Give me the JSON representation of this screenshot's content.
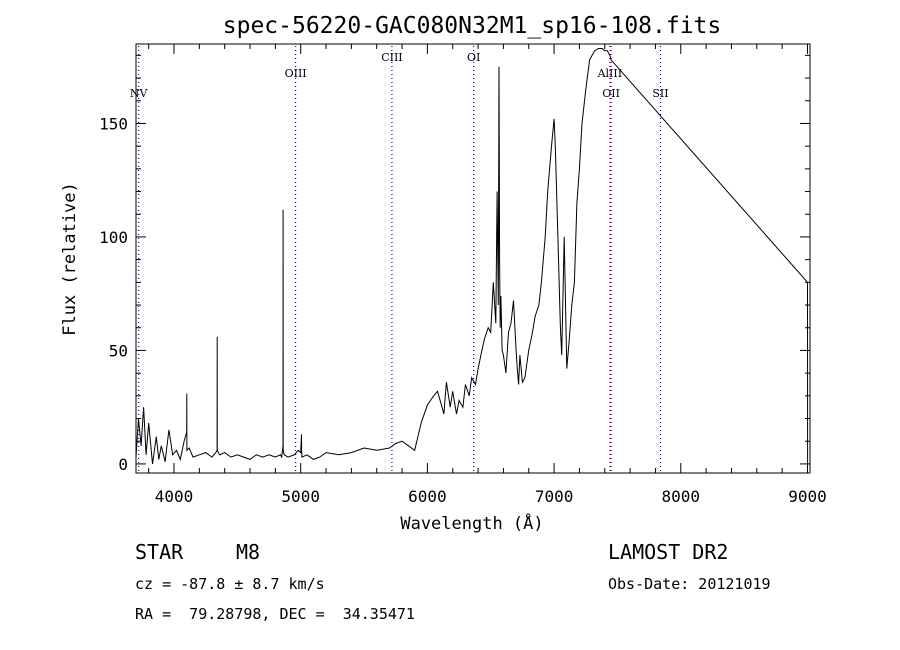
{
  "chart_data": {
    "type": "line",
    "title": "spec-56220-GAC080N32M1_sp16-108.fits",
    "xlabel": "Wavelength (Å)",
    "ylabel": "Flux (relative)",
    "xlim": [
      3700,
      9020
    ],
    "ylim": [
      -4,
      185
    ],
    "x_ticks": [
      "4000",
      "5000",
      "6000",
      "7000",
      "8000",
      "9000"
    ],
    "y_ticks": [
      "0",
      "50",
      "100",
      "150"
    ],
    "grid": false,
    "series": [
      {
        "x": [
          3700,
          3720,
          3740,
          3760,
          3780,
          3800,
          3830,
          3860,
          3880,
          3900,
          3930,
          3960,
          3990,
          4020,
          4050,
          4080,
          4100,
          4101,
          4102,
          4120,
          4150,
          4200,
          4250,
          4300,
          4330,
          4340,
          4341,
          4342,
          4360,
          4400,
          4450,
          4500,
          4550,
          4600,
          4650,
          4700,
          4750,
          4800,
          4840,
          4850,
          4860,
          4861,
          4862,
          4870,
          4900,
          4950,
          4980,
          5000,
          5006,
          5007,
          5010,
          5050,
          5100,
          5150,
          5200,
          5300,
          5400,
          5500,
          5600,
          5700,
          5750,
          5800,
          5850,
          5900,
          5950,
          6000,
          6050,
          6080,
          6100,
          6130,
          6150,
          6180,
          6200,
          6230,
          6250,
          6280,
          6300,
          6330,
          6350,
          6380,
          6400,
          6430,
          6450,
          6480,
          6500,
          6520,
          6540,
          6550,
          6560,
          6563,
          6565,
          6570,
          6575,
          6580,
          6590,
          6600,
          6620,
          6640,
          6660,
          6680,
          6700,
          6710,
          6720,
          6730,
          6750,
          6770,
          6800,
          6830,
          6850,
          6880,
          6900,
          6930,
          6950,
          6980,
          7000,
          7010,
          7030,
          7050,
          7060,
          7080,
          7100,
          7120,
          7140,
          7160,
          7180,
          7200,
          7220,
          7250,
          7280,
          7300,
          7320,
          7350,
          7380,
          7400,
          7420,
          7440,
          7450,
          9000,
          9001
        ],
        "y": [
          3,
          20,
          8,
          25,
          4,
          18,
          0,
          12,
          2,
          8,
          1,
          15,
          4,
          6,
          2,
          10,
          14,
          31,
          6,
          7,
          3,
          4,
          5,
          3,
          5,
          6,
          56,
          6,
          4,
          5,
          3,
          4,
          3,
          2,
          4,
          3,
          4,
          3,
          4,
          3,
          8,
          112,
          6,
          4,
          3,
          4,
          6,
          5,
          13,
          6,
          3,
          4,
          2,
          3,
          5,
          4,
          5,
          7,
          6,
          7,
          9,
          10,
          8,
          6,
          18,
          26,
          30,
          32,
          28,
          22,
          36,
          25,
          32,
          22,
          28,
          25,
          35,
          30,
          38,
          35,
          42,
          50,
          55,
          60,
          58,
          80,
          62,
          120,
          70,
          130,
          175,
          90,
          60,
          74,
          50,
          48,
          40,
          58,
          62,
          72,
          50,
          42,
          35,
          48,
          36,
          38,
          50,
          58,
          65,
          70,
          80,
          100,
          120,
          140,
          152,
          140,
          100,
          60,
          48,
          100,
          42,
          55,
          70,
          80,
          115,
          130,
          150,
          165,
          178,
          180,
          182,
          183,
          183,
          182,
          182,
          180,
          178,
          80,
          0
        ]
      }
    ],
    "line_markers": [
      {
        "label": "NV",
        "x": 3721,
        "color": "#0000d8",
        "label_row": 2
      },
      {
        "label": "OIII",
        "x": 4960,
        "color": "#0000d8",
        "label_row": 1
      },
      {
        "label": "CIII",
        "x": 5720,
        "color": "#0000d8",
        "label_row": 0
      },
      {
        "label": "OI",
        "x": 6365,
        "color": "#0000d8",
        "label_row": 0
      },
      {
        "label": "AlIII",
        "x": 7440,
        "color": "#d80000",
        "label_row": 1
      },
      {
        "label": "OII",
        "x": 7450,
        "color": "#0000d8",
        "label_row": 2
      },
      {
        "label": "SII",
        "x": 7840,
        "color": "#0000d8",
        "label_row": 2
      }
    ]
  },
  "info": {
    "class_label": "STAR",
    "subclass": "M8",
    "survey": "LAMOST DR2",
    "cz": "cz = -87.8 ± 8.7 km/s",
    "obs_date": "Obs-Date: 20121019",
    "coords": "RA =  79.28798, DEC =  34.35471"
  }
}
